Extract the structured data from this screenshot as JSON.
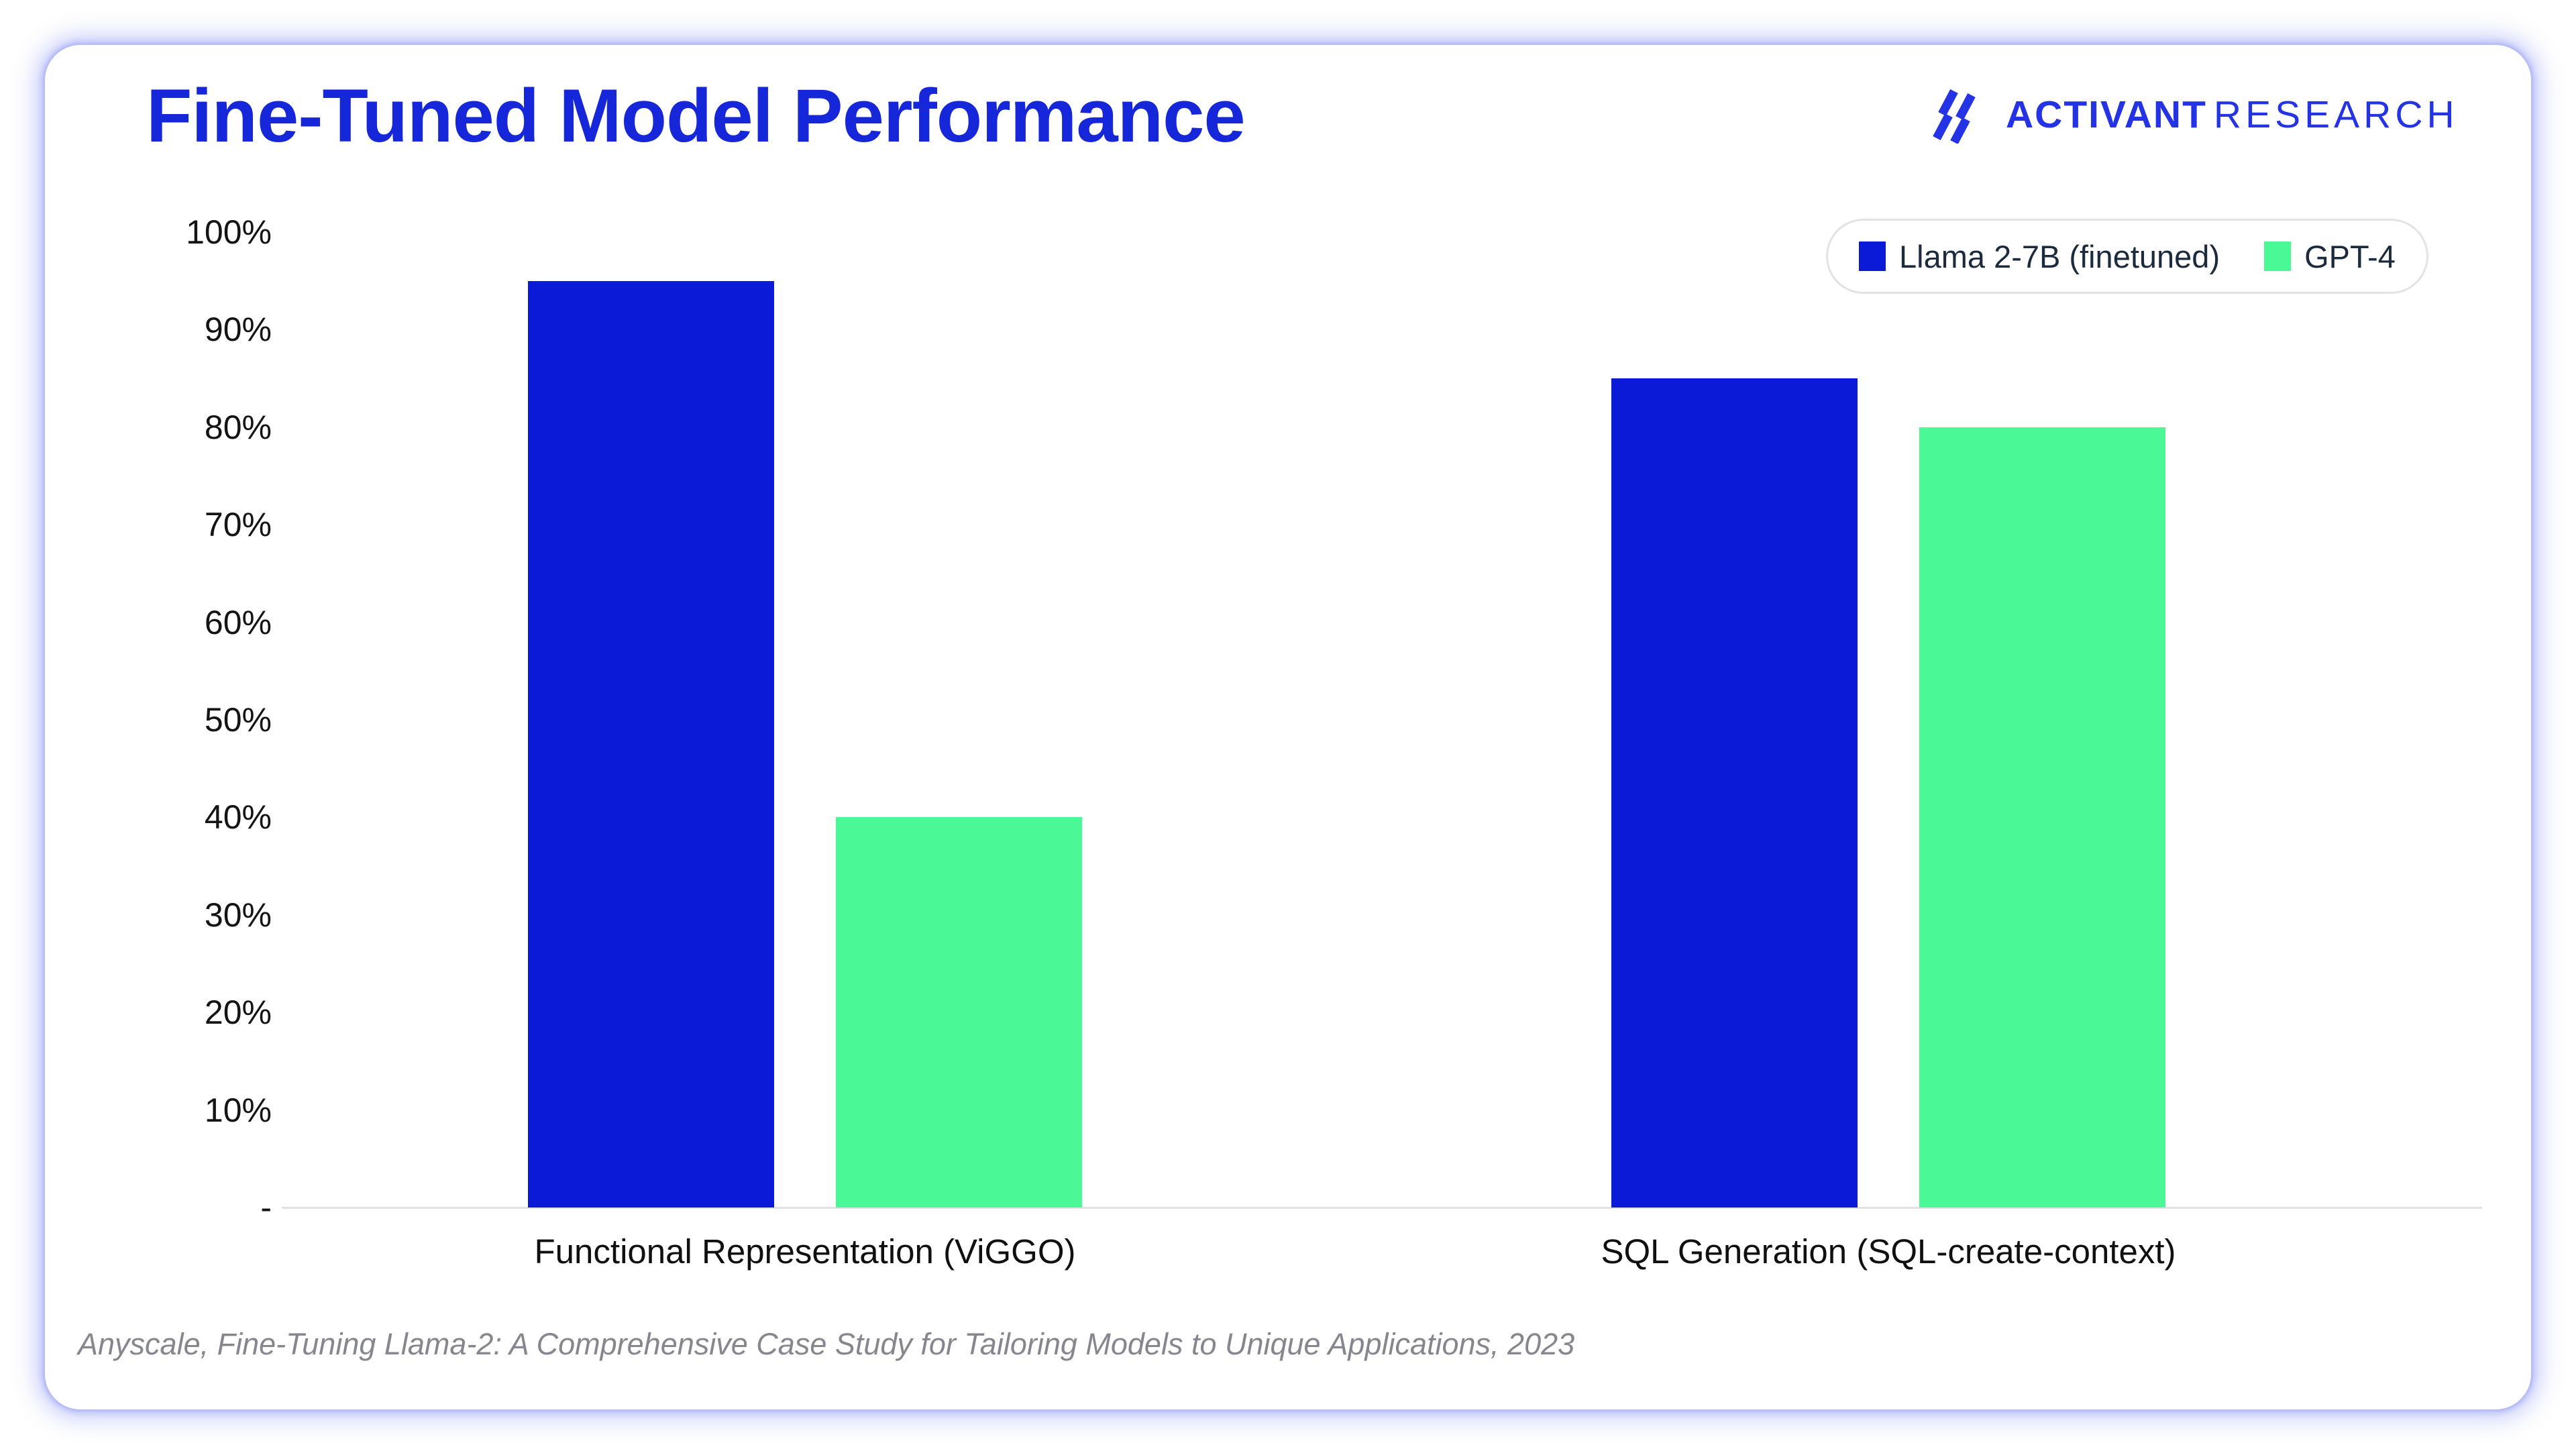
{
  "header": {
    "title": "Fine-Tuned Model Performance",
    "brand_primary": "ACTIVANT",
    "brand_secondary": "RESEARCH"
  },
  "colors": {
    "title_blue": "#1627D9",
    "logo_blue": "#2433E3",
    "bar_blue": "#0B1AD7",
    "bar_green": "#4AF995",
    "legend_text": "#1B2B3D",
    "axis_text": "#141414",
    "footer_gray": "#86868E",
    "card_border": "#B9BFF5"
  },
  "chart_data": {
    "type": "bar",
    "title": "Fine-Tuned Model Performance",
    "categories": [
      "Functional Representation (ViGGO)",
      "SQL Generation (SQL-create-context)"
    ],
    "series": [
      {
        "name": "Llama 2-7B (finetuned)",
        "color": "#0B1AD7",
        "values": [
          95,
          85
        ]
      },
      {
        "name": "GPT-4",
        "color": "#4AF995",
        "values": [
          40,
          80
        ]
      }
    ],
    "yticks": [
      "100%",
      "90%",
      "80%",
      "70%",
      "60%",
      "50%",
      "40%",
      "30%",
      "20%",
      "10%",
      "-"
    ],
    "ylim": [
      0,
      100
    ],
    "grid": false,
    "legend_position": "top-right",
    "xlabel": "",
    "ylabel": ""
  },
  "footer": {
    "source": "Anyscale, Fine-Tuning Llama-2: A Comprehensive Case Study for Tailoring Models to Unique Applications, 2023"
  }
}
